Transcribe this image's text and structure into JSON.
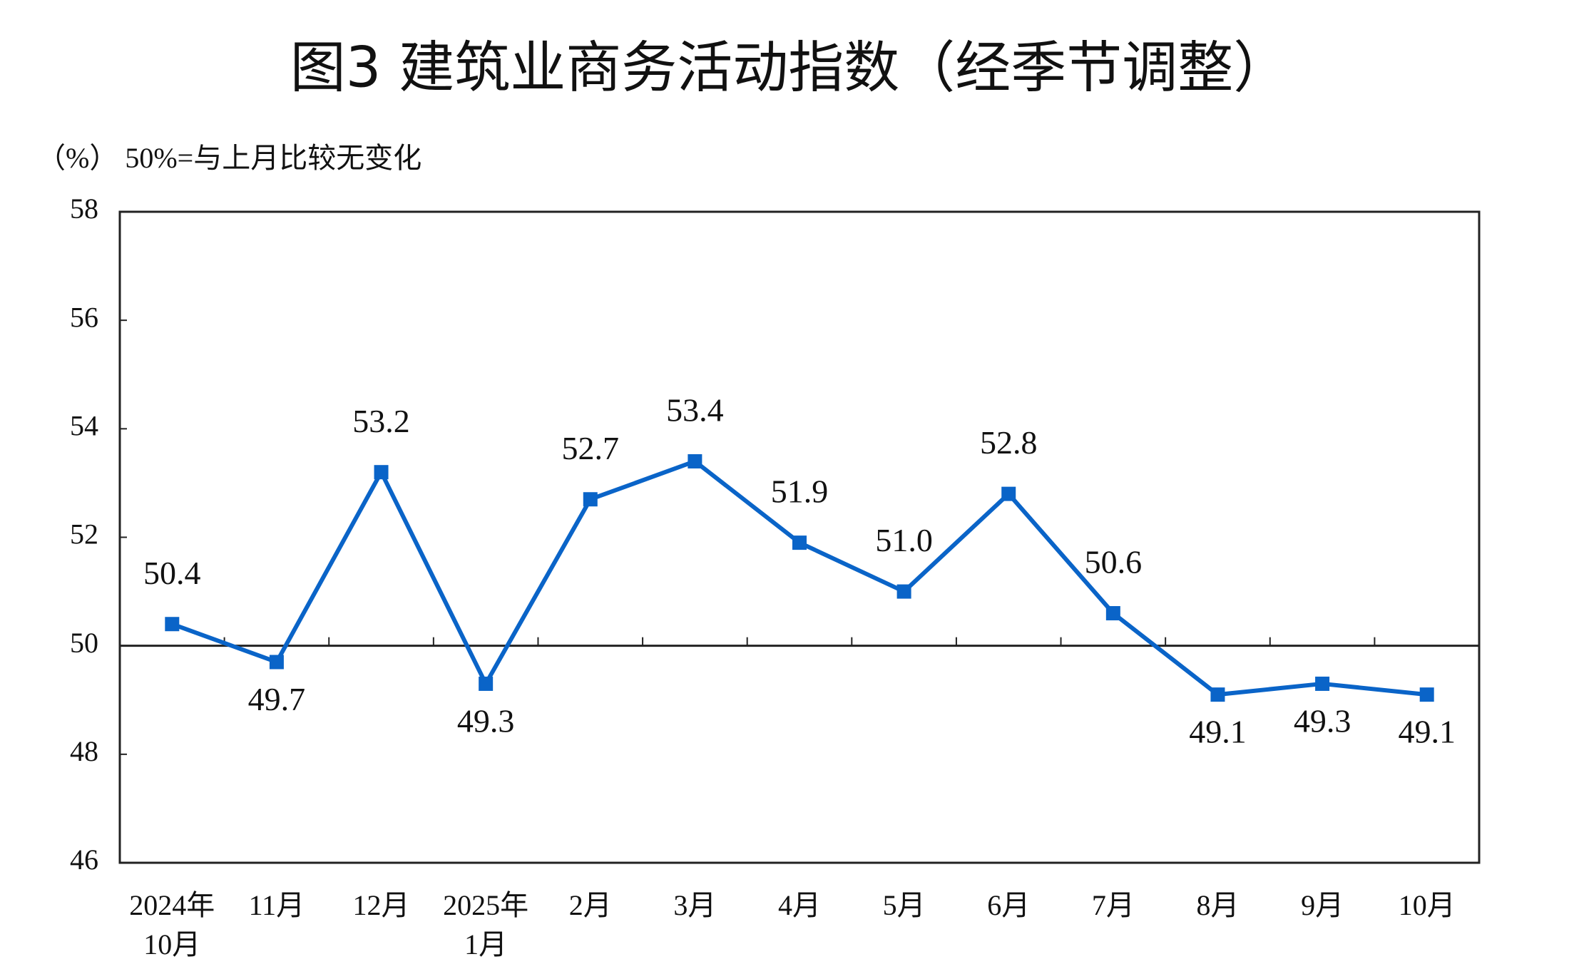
{
  "chart_data": {
    "type": "line",
    "title": "图3  建筑业商务活动指数（经季节调整）",
    "subtitle": "（%）  50%=与上月比较无变化",
    "categories": [
      [
        "2024年",
        "10月"
      ],
      [
        "11月"
      ],
      [
        "12月"
      ],
      [
        "2025年",
        "1月"
      ],
      [
        "2月"
      ],
      [
        "3月"
      ],
      [
        "4月"
      ],
      [
        "5月"
      ],
      [
        "6月"
      ],
      [
        "7月"
      ],
      [
        "8月"
      ],
      [
        "9月"
      ],
      [
        "10月"
      ]
    ],
    "values": [
      50.4,
      49.7,
      53.2,
      49.3,
      52.7,
      53.4,
      51.9,
      51.0,
      52.8,
      50.6,
      49.1,
      49.3,
      49.1
    ],
    "value_labels": [
      "50.4",
      "49.7",
      "53.2",
      "49.3",
      "52.7",
      "53.4",
      "51.9",
      "51.0",
      "52.8",
      "50.6",
      "49.1",
      "49.3",
      "49.1"
    ],
    "color": "#0a64c8",
    "ylim": [
      46,
      58
    ],
    "yticks": [
      46,
      48,
      50,
      52,
      54,
      56,
      58
    ],
    "reference_line": 50
  }
}
